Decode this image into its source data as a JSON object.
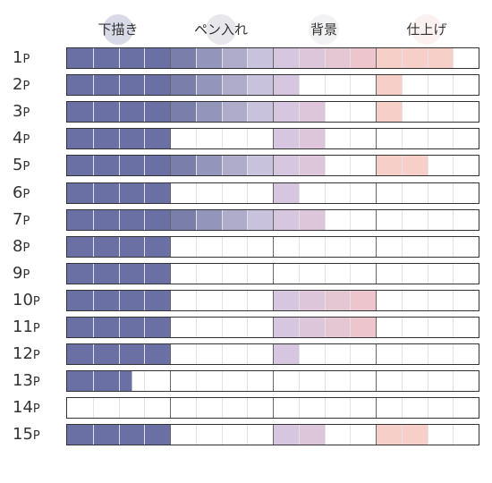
{
  "stages": [
    {
      "label": "下描き",
      "circle_color": "#b8bbd4"
    },
    {
      "label": "ペン入れ",
      "circle_color": "#d4d4dc"
    },
    {
      "label": "背景",
      "circle_color": "#e8e6ea"
    },
    {
      "label": "仕上げ",
      "circle_color": "#f6e6e4"
    }
  ],
  "cells_per_stage": 4,
  "page_unit": "P",
  "colors": {
    "sketch": "#6b70a4",
    "ink_start": "#7a7eaa",
    "ink_end": "#c8c2dc",
    "background_start": "#d6c6e0",
    "background_end": "#ecc6cc",
    "finish": "#f6cfc8",
    "empty": "#ffffff"
  },
  "pages": [
    {
      "number": "1",
      "progress": [
        4,
        4,
        4,
        3
      ]
    },
    {
      "number": "2",
      "progress": [
        4,
        4,
        1,
        1
      ]
    },
    {
      "number": "3",
      "progress": [
        4,
        4,
        2,
        1
      ]
    },
    {
      "number": "4",
      "progress": [
        4,
        0,
        2,
        0
      ]
    },
    {
      "number": "5",
      "progress": [
        4,
        4,
        2,
        2
      ]
    },
    {
      "number": "6",
      "progress": [
        4,
        0,
        1,
        0
      ]
    },
    {
      "number": "7",
      "progress": [
        4,
        4,
        2,
        0
      ]
    },
    {
      "number": "8",
      "progress": [
        4,
        0,
        0,
        0
      ]
    },
    {
      "number": "9",
      "progress": [
        4,
        0,
        0,
        0
      ]
    },
    {
      "number": "10",
      "progress": [
        4,
        0,
        4,
        0
      ]
    },
    {
      "number": "11",
      "progress": [
        4,
        0,
        4,
        0
      ]
    },
    {
      "number": "12",
      "progress": [
        4,
        0,
        1,
        0
      ]
    },
    {
      "number": "13",
      "progress": [
        2.5,
        0,
        0,
        0
      ]
    },
    {
      "number": "14",
      "progress": [
        0,
        0,
        0,
        0
      ]
    },
    {
      "number": "15",
      "progress": [
        4,
        0,
        2,
        2
      ]
    }
  ]
}
